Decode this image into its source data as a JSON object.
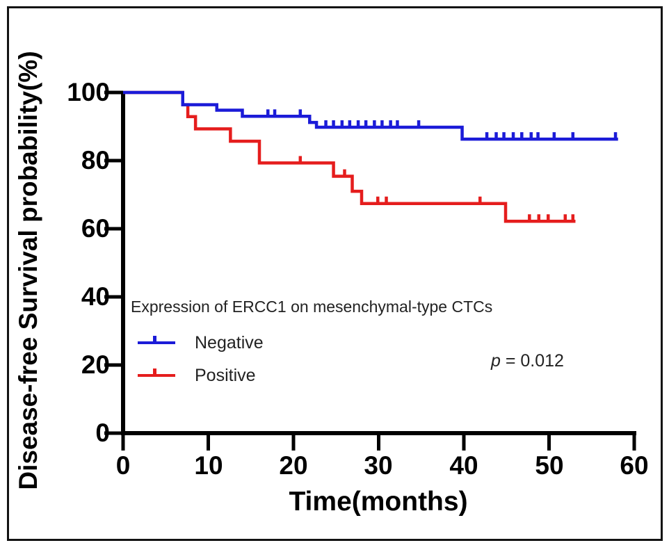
{
  "figure": {
    "background": "#ffffff",
    "border_color": "#131313",
    "axis_color": "#000000"
  },
  "chart_data": {
    "type": "line",
    "variant": "kaplan-meier-step-survival",
    "title": "",
    "xlabel": "Time(months)",
    "ylabel": "Disease-free Survival probability(%)",
    "xlim": [
      0,
      60
    ],
    "ylim": [
      0,
      100
    ],
    "xticks": [
      0,
      10,
      20,
      30,
      40,
      50,
      60
    ],
    "yticks": [
      100,
      80,
      60,
      40,
      20,
      0
    ],
    "xtick_labels": [
      "0",
      "10",
      "20",
      "30",
      "40",
      "50",
      "60"
    ],
    "ytick_labels": [
      "100",
      "80",
      "60",
      "40",
      "20",
      "0"
    ],
    "grid": false,
    "legend": {
      "title": "Expression of ERCC1 on mesenchymal-type CTCs",
      "position": "inside-middle-left"
    },
    "annotation": {
      "symbol": "p",
      "rest": " = 0.012"
    },
    "series": [
      {
        "name": "Negative",
        "color": "#1b1bd8",
        "steps_time_pct": [
          [
            0,
            100
          ],
          [
            7,
            96.4
          ],
          [
            11,
            94.8
          ],
          [
            14,
            93.0
          ],
          [
            21.9,
            91.2
          ],
          [
            22.7,
            89.8
          ],
          [
            39.8,
            86.3
          ]
        ],
        "end_time": 58.1,
        "censor_marks_time_pct": [
          [
            17,
            93
          ],
          [
            17.8,
            93
          ],
          [
            20.8,
            93
          ],
          [
            23.8,
            89.8
          ],
          [
            24.7,
            89.8
          ],
          [
            25.7,
            89.8
          ],
          [
            26.6,
            89.8
          ],
          [
            27.6,
            89.8
          ],
          [
            28.5,
            89.8
          ],
          [
            29.5,
            89.8
          ],
          [
            30.4,
            89.8
          ],
          [
            31.4,
            89.8
          ],
          [
            32.2,
            89.8
          ],
          [
            34.7,
            89.8
          ],
          [
            42.7,
            86.3
          ],
          [
            43.8,
            86.3
          ],
          [
            44.7,
            86.3
          ],
          [
            45.8,
            86.3
          ],
          [
            46.8,
            86.3
          ],
          [
            47.9,
            86.3
          ],
          [
            48.7,
            86.3
          ],
          [
            50.6,
            86.3
          ],
          [
            52.8,
            86.3
          ],
          [
            57.8,
            86.3
          ]
        ]
      },
      {
        "name": "Positive",
        "color": "#e51d1d",
        "steps_time_pct": [
          [
            0,
            100
          ],
          [
            7,
            96.4
          ],
          [
            7.6,
            92.9
          ],
          [
            8.5,
            89.3
          ],
          [
            12.6,
            85.7
          ],
          [
            16,
            79.3
          ],
          [
            24.7,
            75.4
          ],
          [
            26.9,
            71.0
          ],
          [
            28,
            67.4
          ],
          [
            44.9,
            62.2
          ]
        ],
        "end_time": 53.1,
        "censor_marks_time_pct": [
          [
            20.8,
            79.3
          ],
          [
            26,
            75.4
          ],
          [
            29.9,
            67.4
          ],
          [
            30.9,
            67.4
          ],
          [
            41.9,
            67.4
          ],
          [
            47.7,
            62.2
          ],
          [
            48.8,
            62.2
          ],
          [
            49.9,
            62.2
          ],
          [
            51.9,
            62.2
          ],
          [
            52.8,
            62.2
          ]
        ]
      }
    ]
  }
}
